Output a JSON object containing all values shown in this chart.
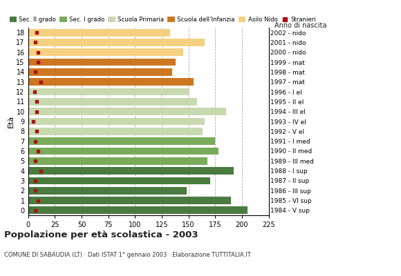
{
  "ages": [
    18,
    17,
    16,
    15,
    14,
    13,
    12,
    11,
    10,
    9,
    8,
    7,
    6,
    5,
    4,
    3,
    2,
    1,
    0
  ],
  "birth_years": [
    "1984 - V sup",
    "1985 - VI sup",
    "1986 - III sup",
    "1987 - II sup",
    "1988 - I sup",
    "1989 - III med",
    "1990 - II med",
    "1991 - I med",
    "1992 - V el",
    "1993 - IV el",
    "1994 - III el",
    "1995 - II el",
    "1996 - I el",
    "1997 - mat",
    "1998 - mat",
    "1999 - mat",
    "2000 - nido",
    "2001 - nido",
    "2002 - nido"
  ],
  "values": [
    205,
    190,
    148,
    170,
    192,
    168,
    178,
    175,
    163,
    165,
    185,
    158,
    150,
    155,
    135,
    138,
    145,
    165,
    133
  ],
  "stranieri": [
    7,
    9,
    7,
    7,
    12,
    7,
    9,
    7,
    8,
    5,
    8,
    8,
    6,
    12,
    7,
    9,
    9,
    7,
    8
  ],
  "bar_colors": [
    "#4a7c3f",
    "#4a7c3f",
    "#4a7c3f",
    "#4a7c3f",
    "#4a7c3f",
    "#7aab5a",
    "#7aab5a",
    "#7aab5a",
    "#c8d9b0",
    "#c8d9b0",
    "#c8d9b0",
    "#c8d9b0",
    "#c8d9b0",
    "#cc7722",
    "#cc7722",
    "#cc7722",
    "#f5d080",
    "#f5d080",
    "#f5d080"
  ],
  "legend_labels": [
    "Sec. II grado",
    "Sec. I grado",
    "Scuola Primaria",
    "Scuola dell'Infanzia",
    "Asilo Nido",
    "Stranieri"
  ],
  "legend_colors": [
    "#4a7c3f",
    "#7aab5a",
    "#c8d9b0",
    "#cc7722",
    "#f5d080",
    "#aa1111"
  ],
  "stranieri_color": "#aa1111",
  "title": "Popolazione per età scolastica - 2003",
  "subtitle": "COMUNE DI SABAUDIA (LT) · Dati ISTAT 1° gennaio 2003 · Elaborazione TUTTITALIA.IT",
  "ylabel": "Età",
  "right_label": "Anno di nascita",
  "xlim": [
    0,
    225
  ],
  "xticks": [
    0,
    25,
    50,
    75,
    100,
    125,
    150,
    175,
    200,
    225
  ],
  "grid_color": "#aaaaaa",
  "bg_color": "#ffffff"
}
